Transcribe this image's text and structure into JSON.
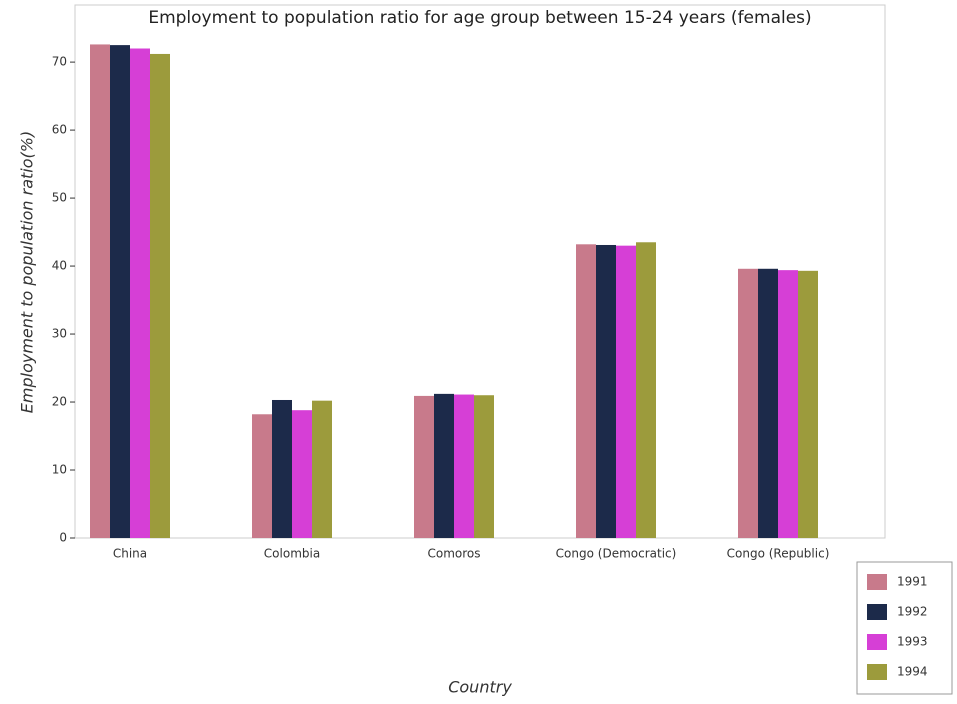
{
  "chart_data": {
    "type": "bar",
    "title": "Employment to population ratio for age group between 15-24 years (females)",
    "x_label": "Country",
    "y_label": "Employment to population ratio(%)",
    "categories": [
      "China",
      "Colombia",
      "Comoros",
      "Congo (Democratic)",
      "Congo (Republic)"
    ],
    "series": [
      {
        "name": "1991",
        "color": "#c87a8b",
        "values": [
          72.6,
          18.2,
          20.9,
          43.2,
          39.6
        ]
      },
      {
        "name": "1992",
        "color": "#1c2a4a",
        "values": [
          72.5,
          20.3,
          21.2,
          43.1,
          39.6
        ]
      },
      {
        "name": "1993",
        "color": "#d63fd6",
        "values": [
          72.0,
          18.8,
          21.1,
          43.0,
          39.4
        ]
      },
      {
        "name": "1994",
        "color": "#9c9b3c",
        "values": [
          71.2,
          20.2,
          21.0,
          43.5,
          39.3
        ]
      }
    ],
    "ylim": [
      0,
      78.4
    ],
    "yticks": [
      0,
      10,
      20,
      30,
      40,
      50,
      60,
      70
    ],
    "grid": false,
    "legend": "lower right"
  }
}
